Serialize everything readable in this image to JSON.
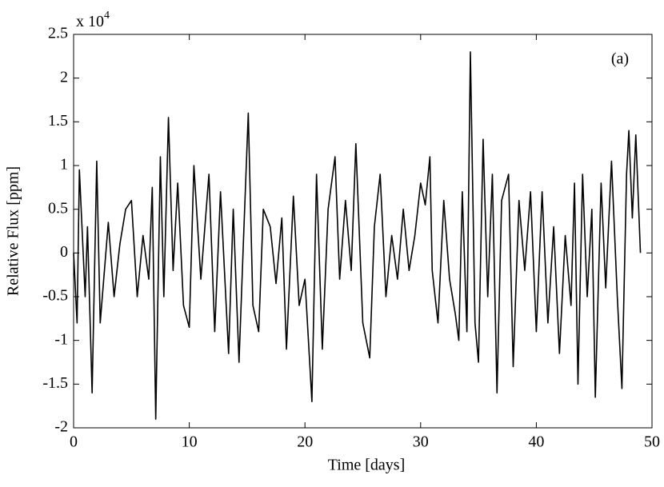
{
  "chart_data": {
    "type": "line",
    "xlabel": "Time [days]",
    "ylabel": "Relative Flux [ppm]",
    "annotation": "(a)",
    "y_multiplier": {
      "base": "x 10",
      "exponent": "4"
    },
    "x": [
      0,
      0.3,
      0.5,
      1,
      1.2,
      1.6,
      2,
      2.3,
      3,
      3.5,
      4,
      4.5,
      5,
      5.5,
      6,
      6.5,
      6.8,
      7.1,
      7.5,
      7.8,
      8.2,
      8.6,
      9,
      9.5,
      10,
      10.4,
      11,
      11.7,
      12.2,
      12.7,
      13.4,
      13.8,
      14.3,
      14.7,
      15.1,
      15.5,
      16,
      16.4,
      17,
      17.5,
      18,
      18.4,
      19,
      19.5,
      20,
      20.6,
      21,
      21.5,
      22,
      22.6,
      23,
      23.5,
      24,
      24.4,
      25,
      25.6,
      26,
      26.5,
      27,
      27.5,
      28,
      28.5,
      29,
      29.5,
      30,
      30.4,
      30.8,
      31,
      31.5,
      32,
      32.5,
      33,
      33.3,
      33.6,
      34,
      34.3,
      34.7,
      35,
      35.4,
      35.8,
      36.2,
      36.6,
      37,
      37.6,
      38,
      38.5,
      39,
      39.5,
      40,
      40.5,
      41,
      41.5,
      42,
      42.5,
      43,
      43.3,
      43.6,
      44,
      44.4,
      44.8,
      45.1,
      45.6,
      46,
      46.5,
      47,
      47.4,
      47.8,
      48,
      48.3,
      48.6,
      49
    ],
    "series": [
      {
        "name": "flux",
        "color": "#000000",
        "values": [
          0,
          -0.8,
          0.95,
          -0.5,
          0.3,
          -1.6,
          1.05,
          -0.8,
          0.35,
          -0.5,
          0.1,
          0.5,
          0.6,
          -0.5,
          0.2,
          -0.3,
          0.75,
          -1.9,
          1.1,
          -0.5,
          1.55,
          -0.2,
          0.8,
          -0.6,
          -0.85,
          1.0,
          -0.3,
          0.9,
          -0.9,
          0.7,
          -1.15,
          0.5,
          -1.25,
          0.2,
          1.6,
          -0.6,
          -0.9,
          0.5,
          0.3,
          -0.35,
          0.4,
          -1.1,
          0.65,
          -0.6,
          -0.3,
          -1.7,
          0.9,
          -1.1,
          0.5,
          1.1,
          -0.3,
          0.6,
          -0.2,
          1.25,
          -0.8,
          -1.2,
          0.3,
          0.9,
          -0.5,
          0.2,
          -0.3,
          0.5,
          -0.2,
          0.2,
          0.8,
          0.55,
          1.1,
          -0.2,
          -0.8,
          0.6,
          -0.3,
          -0.7,
          -1.0,
          0.7,
          -0.9,
          2.3,
          -0.8,
          -1.25,
          1.3,
          -0.5,
          0.9,
          -1.6,
          0.6,
          0.9,
          -1.3,
          0.6,
          -0.2,
          0.7,
          -0.9,
          0.7,
          -0.8,
          0.3,
          -1.15,
          0.2,
          -0.6,
          0.8,
          -1.5,
          0.9,
          -0.5,
          0.5,
          -1.65,
          0.8,
          -0.4,
          1.05,
          -0.5,
          -1.55,
          0.9,
          1.4,
          0.4,
          1.35,
          0
        ]
      }
    ],
    "xlim": [
      0,
      50
    ],
    "xticks": [
      0,
      10,
      20,
      30,
      40,
      50
    ],
    "ylim": [
      -2,
      2.5
    ],
    "yticks": [
      -2,
      -1.5,
      -1,
      -0.5,
      0,
      0.5,
      1,
      1.5,
      2,
      2.5
    ],
    "grid": false
  }
}
